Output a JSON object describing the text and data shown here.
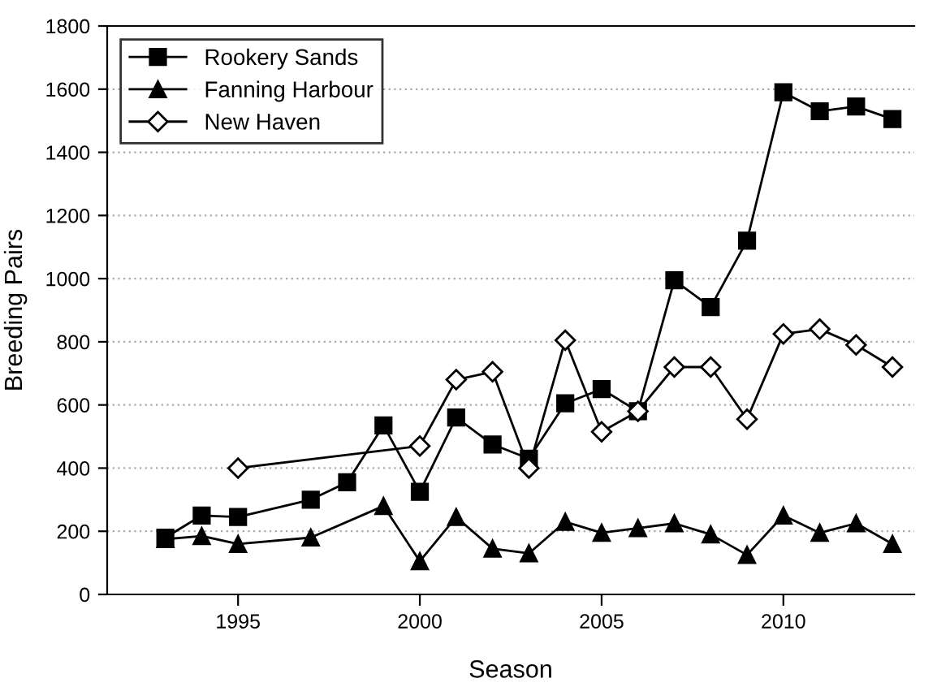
{
  "chart_data": {
    "type": "line",
    "xlabel": "Season",
    "ylabel": "Breeding Pairs",
    "xlim": [
      1991.4,
      2013.6
    ],
    "xticks": [
      1995,
      2000,
      2005,
      2010
    ],
    "ylim": [
      0,
      1800
    ],
    "yticks": [
      0,
      200,
      400,
      600,
      800,
      1000,
      1200,
      1400,
      1600,
      1800
    ],
    "grid": "y",
    "legend": "top left",
    "series": [
      {
        "name": "Rookery Sands",
        "color": "#000000",
        "marker": "square",
        "x": [
          1993,
          1994,
          1995,
          1997,
          1998,
          1999,
          2000,
          2001,
          2002,
          2003,
          2004,
          2005,
          2006,
          2007,
          2008,
          2009,
          2010,
          2011,
          2012,
          2013
        ],
        "values": [
          180,
          250,
          245,
          300,
          355,
          535,
          325,
          560,
          475,
          430,
          605,
          650,
          580,
          995,
          910,
          1120,
          1590,
          1530,
          1545,
          1505
        ]
      },
      {
        "name": "Fanning Harbour",
        "color": "#000000",
        "marker": "triangle",
        "x": [
          1993,
          1994,
          1995,
          1997,
          1999,
          2000,
          2001,
          2002,
          2003,
          2004,
          2005,
          2006,
          2007,
          2008,
          2009,
          2010,
          2011,
          2012,
          2013
        ],
        "values": [
          175,
          185,
          160,
          180,
          280,
          105,
          245,
          145,
          130,
          230,
          195,
          210,
          225,
          190,
          125,
          250,
          195,
          225,
          160
        ]
      },
      {
        "name": "New Haven",
        "color": "#000000",
        "marker": "diamond",
        "x": [
          1995,
          2000,
          2001,
          2002,
          2003,
          2004,
          2005,
          2006,
          2007,
          2008,
          2009,
          2010,
          2011,
          2012,
          2013
        ],
        "values": [
          400,
          470,
          680,
          705,
          400,
          805,
          515,
          580,
          720,
          720,
          555,
          825,
          840,
          790,
          720
        ]
      }
    ]
  }
}
